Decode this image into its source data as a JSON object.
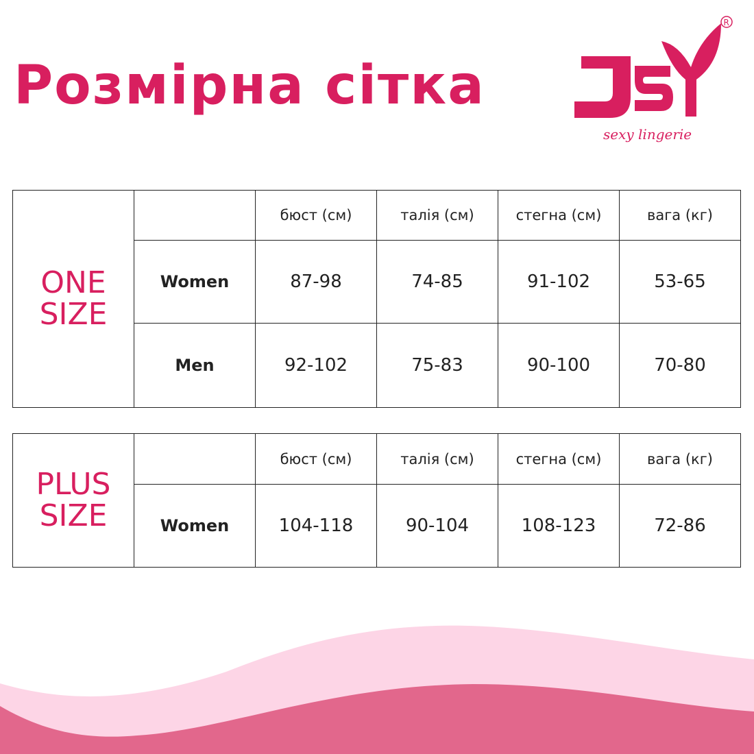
{
  "title": "Розмірна сітка",
  "brand": {
    "logo_text": "JSY",
    "tagline": "sexy lingerie",
    "registered": "®",
    "color": "#d81f5f"
  },
  "headers": [
    "бюст (см)",
    "талія (см)",
    "стегна (см)",
    "вага (кг)"
  ],
  "one_size": {
    "label_line1": "ONE",
    "label_line2": "SIZE",
    "rows": [
      {
        "label": "Women",
        "values": [
          "87-98",
          "74-85",
          "91-102",
          "53-65"
        ]
      },
      {
        "label": "Men",
        "values": [
          "92-102",
          "75-83",
          "90-100",
          "70-80"
        ]
      }
    ]
  },
  "plus_size": {
    "label_line1": "PLUS",
    "label_line2": "SIZE",
    "rows": [
      {
        "label": "Women",
        "values": [
          "104-118",
          "90-104",
          "108-123",
          "72-86"
        ]
      }
    ]
  },
  "colors": {
    "accent": "#d81f5f",
    "wave_light": "#fdd5e6",
    "wave_dark": "#e2678c"
  }
}
